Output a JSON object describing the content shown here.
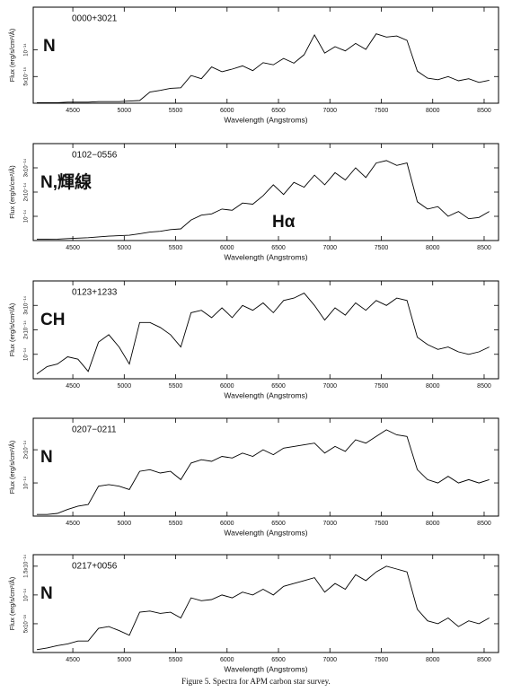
{
  "chart_data": [
    {
      "type": "line",
      "title": "0000+3021",
      "annotations": [
        "N"
      ],
      "xlabel": "Wavelength (Angstroms)",
      "ylabel": "Flux (erg/s/cm²/Å)",
      "color": "#000000",
      "xlim": [
        4115,
        8640
      ],
      "ylim": [
        0,
        1.8e-14
      ],
      "xticks": [
        4500,
        5000,
        5500,
        6000,
        6500,
        7000,
        7500,
        8000,
        8500
      ],
      "yticks": [
        {
          "value": 5e-15,
          "label": "5x10⁻¹⁵"
        },
        {
          "value": 1e-14,
          "label": "10⁻¹⁴"
        }
      ],
      "x": [
        4150,
        4250,
        4350,
        4450,
        4550,
        4650,
        4750,
        4850,
        4950,
        5050,
        5150,
        5250,
        5350,
        5450,
        5550,
        5650,
        5750,
        5850,
        5950,
        6050,
        6150,
        6250,
        6350,
        6450,
        6550,
        6650,
        6750,
        6850,
        6950,
        7050,
        7150,
        7250,
        7350,
        7450,
        7550,
        7650,
        7750,
        7850,
        7950,
        8050,
        8150,
        8250,
        8350,
        8450,
        8550
      ],
      "values": [
        1e-16,
        1e-16,
        1e-16,
        2e-16,
        2e-16,
        2e-16,
        3e-16,
        3e-16,
        3e-16,
        4e-16,
        5e-16,
        2.1e-15,
        2.4e-15,
        2.8e-15,
        2.9e-15,
        5.2e-15,
        4.6e-15,
        6.8e-15,
        5.9e-15,
        6.4e-15,
        7e-15,
        6.1e-15,
        7.6e-15,
        7.2e-15,
        8.4e-15,
        7.5e-15,
        9.1e-15,
        1.28e-14,
        9.4e-15,
        1.06e-14,
        9.8e-15,
        1.12e-14,
        1.01e-14,
        1.3e-14,
        1.24e-14,
        1.26e-14,
        1.18e-14,
        6e-15,
        4.7e-15,
        4.4e-15,
        5e-15,
        4.2e-15,
        4.6e-15,
        3.9e-15,
        4.3e-15
      ]
    },
    {
      "type": "line",
      "title": "0102−0556",
      "annotations": [
        "N,輝線",
        "Hα"
      ],
      "xlabel": "Wavelength (Angstroms)",
      "ylabel": "Flux (erg/s/cm²/Å)",
      "color": "#000000",
      "xlim": [
        4115,
        8640
      ],
      "ylim": [
        0,
        4e-14
      ],
      "xticks": [
        4500,
        5000,
        5500,
        6000,
        6500,
        7000,
        7500,
        8000,
        8500
      ],
      "yticks": [
        {
          "value": 1e-14,
          "label": "10⁻¹⁴"
        },
        {
          "value": 2e-14,
          "label": "2x10⁻¹⁴"
        },
        {
          "value": 3e-14,
          "label": "3x10⁻¹⁴"
        }
      ],
      "x": [
        4150,
        4250,
        4350,
        4450,
        4550,
        4650,
        4750,
        4850,
        4950,
        5050,
        5150,
        5250,
        5350,
        5450,
        5550,
        5650,
        5750,
        5850,
        5950,
        6050,
        6150,
        6250,
        6350,
        6450,
        6550,
        6650,
        6750,
        6850,
        6950,
        7050,
        7150,
        7250,
        7350,
        7450,
        7550,
        7650,
        7750,
        7850,
        7950,
        8050,
        8150,
        8250,
        8350,
        8450,
        8550
      ],
      "values": [
        5e-16,
        5e-16,
        6e-16,
        8e-16,
        1e-15,
        1.2e-15,
        1.5e-15,
        1.8e-15,
        2e-15,
        2.2e-15,
        2.8e-15,
        3.5e-15,
        3.8e-15,
        4.5e-15,
        4.8e-15,
        8.5e-15,
        1.05e-14,
        1.1e-14,
        1.3e-14,
        1.25e-14,
        1.55e-14,
        1.5e-14,
        1.85e-14,
        2.3e-14,
        1.9e-14,
        2.4e-14,
        2.2e-14,
        2.7e-14,
        2.3e-14,
        2.8e-14,
        2.5e-14,
        3e-14,
        2.6e-14,
        3.2e-14,
        3.3e-14,
        3.1e-14,
        3.2e-14,
        1.6e-14,
        1.3e-14,
        1.4e-14,
        1e-14,
        1.2e-14,
        9e-15,
        9.5e-15,
        1.2e-14
      ]
    },
    {
      "type": "line",
      "title": "0123+1233",
      "annotations": [
        "CH"
      ],
      "xlabel": "Wavelength (Angstroms)",
      "ylabel": "Flux (erg/s/cm²/Å)",
      "color": "#000000",
      "xlim": [
        4115,
        8640
      ],
      "ylim": [
        0,
        4e-14
      ],
      "xticks": [
        4500,
        5000,
        5500,
        6000,
        6500,
        7000,
        7500,
        8000,
        8500
      ],
      "yticks": [
        {
          "value": 1e-14,
          "label": "10⁻¹⁴"
        },
        {
          "value": 2e-14,
          "label": "2x10⁻¹⁴"
        },
        {
          "value": 3e-14,
          "label": "3x10⁻¹⁴"
        }
      ],
      "x": [
        4150,
        4250,
        4350,
        4450,
        4550,
        4650,
        4750,
        4850,
        4950,
        5050,
        5150,
        5250,
        5350,
        5450,
        5550,
        5650,
        5750,
        5850,
        5950,
        6050,
        6150,
        6250,
        6350,
        6450,
        6550,
        6650,
        6750,
        6850,
        6950,
        7050,
        7150,
        7250,
        7350,
        7450,
        7550,
        7650,
        7750,
        7850,
        7950,
        8050,
        8150,
        8250,
        8350,
        8450,
        8550
      ],
      "values": [
        2e-15,
        5e-15,
        6e-15,
        9e-15,
        8e-15,
        3e-15,
        1.5e-14,
        1.8e-14,
        1.3e-14,
        6e-15,
        2.3e-14,
        2.3e-14,
        2.1e-14,
        1.8e-14,
        1.3e-14,
        2.7e-14,
        2.8e-14,
        2.5e-14,
        2.9e-14,
        2.5e-14,
        3e-14,
        2.8e-14,
        3.1e-14,
        2.7e-14,
        3.2e-14,
        3.3e-14,
        3.5e-14,
        3e-14,
        2.4e-14,
        2.9e-14,
        2.6e-14,
        3.1e-14,
        2.8e-14,
        3.2e-14,
        3e-14,
        3.3e-14,
        3.2e-14,
        1.7e-14,
        1.4e-14,
        1.2e-14,
        1.3e-14,
        1.1e-14,
        1e-14,
        1.1e-14,
        1.3e-14
      ]
    },
    {
      "type": "line",
      "title": "0207−0211",
      "annotations": [
        "N"
      ],
      "xlabel": "Wavelength (Angstroms)",
      "ylabel": "Flux (erg/s/cm²/Å)",
      "color": "#000000",
      "xlim": [
        4115,
        8640
      ],
      "ylim": [
        0,
        2.95e-14
      ],
      "xticks": [
        4500,
        5000,
        5500,
        6000,
        6500,
        7000,
        7500,
        8000,
        8500
      ],
      "yticks": [
        {
          "value": 1e-14,
          "label": "10⁻¹⁴"
        },
        {
          "value": 2e-14,
          "label": "2x10⁻¹⁴"
        }
      ],
      "x": [
        4150,
        4250,
        4350,
        4450,
        4550,
        4650,
        4750,
        4850,
        4950,
        5050,
        5150,
        5250,
        5350,
        5450,
        5550,
        5650,
        5750,
        5850,
        5950,
        6050,
        6150,
        6250,
        6350,
        6450,
        6550,
        6650,
        6750,
        6850,
        6950,
        7050,
        7150,
        7250,
        7350,
        7450,
        7550,
        7650,
        7750,
        7850,
        7950,
        8050,
        8150,
        8250,
        8350,
        8450,
        8550
      ],
      "values": [
        5e-16,
        5e-16,
        8e-16,
        2e-15,
        3e-15,
        3.5e-15,
        9e-15,
        9.5e-15,
        9e-15,
        8e-15,
        1.35e-14,
        1.4e-14,
        1.3e-14,
        1.35e-14,
        1.1e-14,
        1.6e-14,
        1.7e-14,
        1.65e-14,
        1.8e-14,
        1.75e-14,
        1.9e-14,
        1.8e-14,
        2e-14,
        1.85e-14,
        2.05e-14,
        2.1e-14,
        2.15e-14,
        2.2e-14,
        1.9e-14,
        2.1e-14,
        1.95e-14,
        2.3e-14,
        2.2e-14,
        2.4e-14,
        2.6e-14,
        2.45e-14,
        2.4e-14,
        1.4e-14,
        1.1e-14,
        1e-14,
        1.2e-14,
        1e-14,
        1.1e-14,
        1e-14,
        1.1e-14
      ]
    },
    {
      "type": "line",
      "title": "0217+0056",
      "annotations": [
        "N"
      ],
      "xlabel": "Wavelength (Angstroms)",
      "ylabel": "Flux (erg/s/cm²/Å)",
      "color": "#000000",
      "xlim": [
        4115,
        8640
      ],
      "ylim": [
        0,
        1.7e-14
      ],
      "xticks": [
        4500,
        5000,
        5500,
        6000,
        6500,
        7000,
        7500,
        8000,
        8500
      ],
      "yticks": [
        {
          "value": 5e-15,
          "label": "5x10⁻¹⁵"
        },
        {
          "value": 1e-14,
          "label": "10⁻¹⁴"
        },
        {
          "value": 1.5e-14,
          "label": "1.5x10⁻¹⁴"
        }
      ],
      "x": [
        4150,
        4250,
        4350,
        4450,
        4550,
        4650,
        4750,
        4850,
        4950,
        5050,
        5150,
        5250,
        5350,
        5450,
        5550,
        5650,
        5750,
        5850,
        5950,
        6050,
        6150,
        6250,
        6350,
        6450,
        6550,
        6650,
        6750,
        6850,
        6950,
        7050,
        7150,
        7250,
        7350,
        7450,
        7550,
        7650,
        7750,
        7850,
        7950,
        8050,
        8150,
        8250,
        8350,
        8450,
        8550
      ],
      "values": [
        5e-16,
        8e-16,
        1.2e-15,
        1.5e-15,
        2e-15,
        2e-15,
        4.2e-15,
        4.5e-15,
        3.8e-15,
        3e-15,
        7e-15,
        7.2e-15,
        6.8e-15,
        7e-15,
        6e-15,
        9.5e-15,
        9e-15,
        9.2e-15,
        1e-14,
        9.5e-15,
        1.05e-14,
        1e-14,
        1.1e-14,
        1e-14,
        1.15e-14,
        1.2e-14,
        1.25e-14,
        1.3e-14,
        1.05e-14,
        1.2e-14,
        1.1e-14,
        1.35e-14,
        1.25e-14,
        1.4e-14,
        1.5e-14,
        1.45e-14,
        1.4e-14,
        7.5e-15,
        5.5e-15,
        5e-15,
        6e-15,
        4.5e-15,
        5.5e-15,
        5e-15,
        6e-15
      ]
    }
  ],
  "caption": "Figure 5.  Spectra for APM carbon star survey."
}
